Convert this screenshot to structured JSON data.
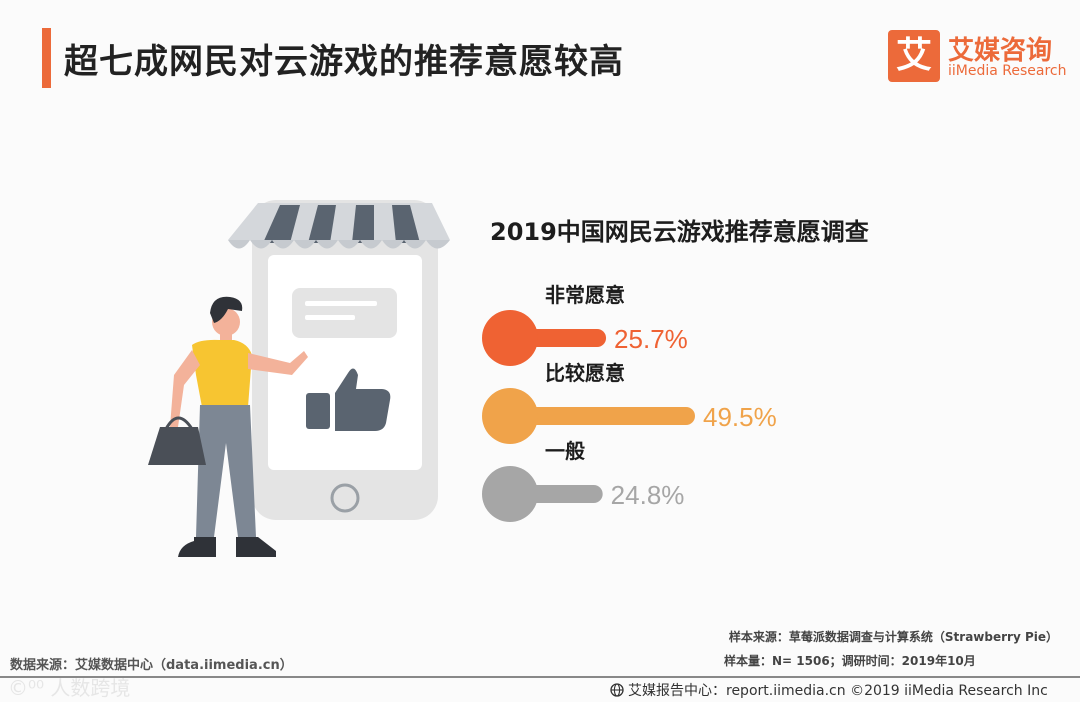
{
  "header": {
    "title": "超七成网民对云游戏的推荐意愿较高",
    "logo_mark": "艾",
    "logo_cn": "艾媒咨询",
    "logo_en": "iiMedia Research",
    "accent": "#ec6a3a"
  },
  "chart_data": {
    "type": "bar",
    "title": "2019中国网民云游戏推荐意愿调查",
    "categories": [
      "非常愿意",
      "比较愿意",
      "一般"
    ],
    "values": [
      25.7,
      49.5,
      24.8
    ],
    "value_labels": [
      "25.7%",
      "49.5%",
      "24.8%"
    ],
    "colors": [
      "#ef6233",
      "#f0a34a",
      "#a6a6a6"
    ],
    "unit": "%",
    "xlim": [
      0,
      49.5
    ],
    "orientation": "horizontal",
    "grid": false
  },
  "footer": {
    "source_left": "数据来源：艾媒数据中心（data.iimedia.cn）",
    "sample_source": "样本来源：草莓派数据调查与计算系统（Strawberry Pie）",
    "sample_size": "样本量：N= 1506；调研时间：2019年10月",
    "report_center": "艾媒报告中心：report.iimedia.cn ©2019  iiMedia Research  Inc",
    "watermark": "©⁰⁰ 人数跨境"
  },
  "icons": {
    "globe": "globe-icon",
    "thumbs_up": "thumbs-up-icon"
  }
}
